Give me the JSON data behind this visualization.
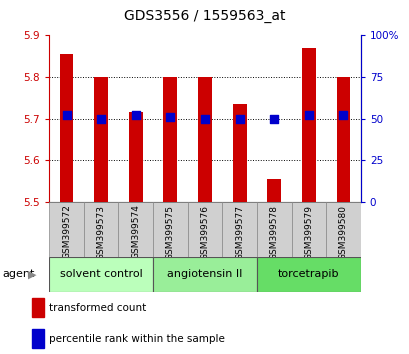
{
  "title": "GDS3556 / 1559563_at",
  "samples": [
    "GSM399572",
    "GSM399573",
    "GSM399574",
    "GSM399575",
    "GSM399576",
    "GSM399577",
    "GSM399578",
    "GSM399579",
    "GSM399580"
  ],
  "transformed_count": [
    5.855,
    5.8,
    5.715,
    5.8,
    5.8,
    5.735,
    5.555,
    5.87,
    5.8
  ],
  "percentile_rank": [
    52,
    50,
    52,
    51,
    50,
    50,
    50,
    52,
    52
  ],
  "ylim_left": [
    5.5,
    5.9
  ],
  "ylim_right": [
    0,
    100
  ],
  "yticks_left": [
    5.5,
    5.6,
    5.7,
    5.8,
    5.9
  ],
  "yticks_right": [
    0,
    25,
    50,
    75,
    100
  ],
  "ytick_labels_right": [
    "0",
    "25",
    "50",
    "75",
    "100%"
  ],
  "grid_lines": [
    5.6,
    5.7,
    5.8
  ],
  "groups": [
    {
      "label": "solvent control",
      "start": 0,
      "end": 3,
      "color": "#bbffbb"
    },
    {
      "label": "angiotensin II",
      "start": 3,
      "end": 6,
      "color": "#99ee99"
    },
    {
      "label": "torcetrapib",
      "start": 6,
      "end": 9,
      "color": "#66dd66"
    }
  ],
  "bar_color": "#cc0000",
  "dot_color": "#0000cc",
  "bar_width": 0.4,
  "dot_size": 35,
  "bar_bottom": 5.5,
  "agent_label": "agent",
  "legend_bar_label": "transformed count",
  "legend_dot_label": "percentile rank within the sample",
  "title_fontsize": 10,
  "tick_fontsize": 7.5,
  "sample_fontsize": 6.5,
  "group_fontsize": 8,
  "legend_fontsize": 7.5,
  "left_tick_color": "#cc0000",
  "right_tick_color": "#0000cc",
  "sample_box_color": "#d0d0d0",
  "bg_color": "#ffffff"
}
